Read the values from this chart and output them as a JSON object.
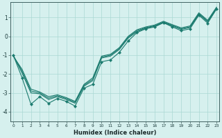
{
  "xlabel": "Humidex (Indice chaleur)",
  "x_values": [
    0,
    1,
    2,
    3,
    4,
    5,
    6,
    7,
    8,
    9,
    10,
    11,
    12,
    13,
    14,
    15,
    16,
    17,
    18,
    19,
    20,
    21,
    22,
    23
  ],
  "line_main": [
    -1.0,
    -2.2,
    -3.6,
    -3.2,
    -3.55,
    -3.3,
    -3.45,
    -3.7,
    -2.75,
    -2.55,
    -1.35,
    -1.25,
    -0.85,
    -0.25,
    0.2,
    0.4,
    0.5,
    0.72,
    0.5,
    0.3,
    0.4,
    1.12,
    0.7,
    1.45
  ],
  "line_reg1": [
    -1.05,
    -1.75,
    -2.8,
    -2.95,
    -3.2,
    -3.1,
    -3.25,
    -3.45,
    -2.55,
    -2.2,
    -1.05,
    -0.95,
    -0.6,
    0.0,
    0.35,
    0.5,
    0.6,
    0.8,
    0.62,
    0.45,
    0.55,
    1.25,
    0.85,
    1.55
  ],
  "line_reg2": [
    -1.02,
    -1.85,
    -2.9,
    -3.0,
    -3.28,
    -3.15,
    -3.3,
    -3.5,
    -2.6,
    -2.28,
    -1.1,
    -1.0,
    -0.65,
    -0.05,
    0.3,
    0.46,
    0.56,
    0.76,
    0.58,
    0.4,
    0.5,
    1.2,
    0.8,
    1.5
  ],
  "line_reg3": [
    -1.0,
    -1.95,
    -3.0,
    -3.05,
    -3.35,
    -3.2,
    -3.35,
    -3.55,
    -2.65,
    -2.35,
    -1.15,
    -1.05,
    -0.7,
    -0.1,
    0.25,
    0.43,
    0.53,
    0.73,
    0.55,
    0.37,
    0.47,
    1.17,
    0.77,
    1.47
  ],
  "bg_color": "#d6f0ee",
  "grid_color": "#aad8d3",
  "line_color": "#1a7a6e",
  "ylim": [
    -4.5,
    1.8
  ],
  "yticks": [
    -4,
    -3,
    -2,
    -1,
    0,
    1
  ],
  "xlim": [
    -0.3,
    23.3
  ],
  "figwidth": 3.2,
  "figheight": 2.0,
  "dpi": 100
}
